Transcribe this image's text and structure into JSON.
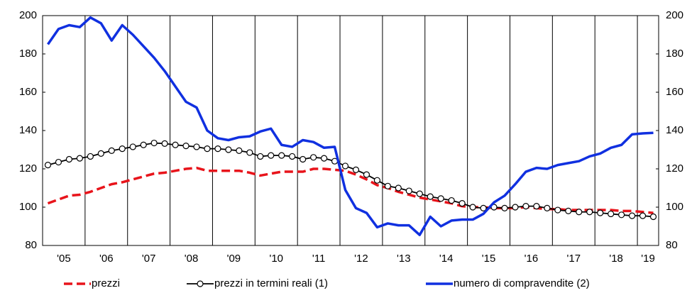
{
  "chart_data": {
    "type": "line",
    "x": [
      2005.125,
      2005.375,
      2005.625,
      2005.875,
      2006.125,
      2006.375,
      2006.625,
      2006.875,
      2007.125,
      2007.375,
      2007.625,
      2007.875,
      2008.125,
      2008.375,
      2008.625,
      2008.875,
      2009.125,
      2009.375,
      2009.625,
      2009.875,
      2010.125,
      2010.375,
      2010.625,
      2010.875,
      2011.125,
      2011.375,
      2011.625,
      2011.875,
      2012.125,
      2012.375,
      2012.625,
      2012.875,
      2013.125,
      2013.375,
      2013.625,
      2013.875,
      2014.125,
      2014.375,
      2014.625,
      2014.875,
      2015.125,
      2015.375,
      2015.625,
      2015.875,
      2016.125,
      2016.375,
      2016.625,
      2016.875,
      2017.125,
      2017.375,
      2017.625,
      2017.875,
      2018.125,
      2018.375,
      2018.625,
      2018.875,
      2019.125,
      2019.375
    ],
    "xlim": [
      2005,
      2019.5
    ],
    "xticks": [
      {
        "value": 2005.5,
        "label": "'05"
      },
      {
        "value": 2006.5,
        "label": "'06"
      },
      {
        "value": 2007.5,
        "label": "'07"
      },
      {
        "value": 2008.5,
        "label": "'08"
      },
      {
        "value": 2009.5,
        "label": "'09"
      },
      {
        "value": 2010.5,
        "label": "'10"
      },
      {
        "value": 2011.5,
        "label": "'11"
      },
      {
        "value": 2012.5,
        "label": "'12"
      },
      {
        "value": 2013.5,
        "label": "'13"
      },
      {
        "value": 2014.5,
        "label": "'14"
      },
      {
        "value": 2015.5,
        "label": "'15"
      },
      {
        "value": 2016.5,
        "label": "'16"
      },
      {
        "value": 2017.5,
        "label": "'17"
      },
      {
        "value": 2018.5,
        "label": "'18"
      },
      {
        "value": 2019.25,
        "label": "'19"
      }
    ],
    "xgrid": [
      2006,
      2007,
      2008,
      2009,
      2010,
      2011,
      2012,
      2013,
      2014,
      2015,
      2016,
      2017,
      2018,
      2019
    ],
    "ylim": [
      80,
      200
    ],
    "yticks": [
      80,
      100,
      120,
      140,
      160,
      180,
      200
    ],
    "y2lim": [
      80,
      200
    ],
    "y2ticks": [
      80,
      100,
      120,
      140,
      160,
      180,
      200
    ],
    "series": [
      {
        "name": "prezzi",
        "color": "#e8141b",
        "dash": true,
        "marker": false,
        "values": [
          102,
          104,
          106,
          106.5,
          108,
          110,
          112,
          113,
          114.5,
          116,
          117.5,
          118,
          119,
          120,
          120.5,
          119,
          119,
          119,
          119,
          118,
          116.5,
          117.5,
          118.5,
          118.5,
          118.5,
          120,
          120,
          119.5,
          119,
          117,
          114.5,
          111.5,
          110,
          108,
          106.5,
          105,
          104,
          103,
          102,
          100.5,
          100,
          100,
          99.5,
          99.5,
          99.5,
          100,
          99.5,
          99,
          99,
          98.5,
          98.5,
          98.5,
          98.5,
          98.5,
          98,
          98,
          97.5,
          97
        ]
      },
      {
        "name": "prezzi in termini reali (1)",
        "color": "#000000",
        "dash": false,
        "marker": true,
        "values": [
          122,
          123.5,
          125,
          125.5,
          126.5,
          128,
          129.5,
          130.5,
          131.5,
          132.5,
          133.5,
          133.2,
          132.5,
          132,
          131.5,
          130.5,
          130.5,
          130,
          129.5,
          128.5,
          126.5,
          127,
          127,
          126.5,
          125,
          126,
          125.5,
          124,
          121.5,
          119.5,
          117,
          114,
          111,
          110,
          108.5,
          107,
          105.5,
          104.5,
          103.5,
          102,
          100,
          99.5,
          100,
          99.5,
          100,
          100.5,
          100.5,
          99.5,
          98.5,
          98,
          97.5,
          97.5,
          97,
          96.5,
          96,
          95.5,
          95.5,
          95
        ]
      },
      {
        "name": "numero di compravendite (2)",
        "color": "#1030e0",
        "dash": false,
        "marker": false,
        "axis": "y2",
        "values": [
          185,
          193,
          195,
          194,
          199,
          196,
          187,
          195,
          190,
          184,
          178,
          171,
          163,
          155,
          152,
          140,
          136,
          135,
          136.5,
          137,
          139.5,
          141,
          132.5,
          131.5,
          135,
          134,
          131,
          131.5,
          109,
          99.5,
          97,
          89.5,
          91.5,
          90.5,
          90.5,
          85.5,
          95,
          90,
          93,
          93.5,
          93.5,
          96.5,
          102.5,
          106,
          112,
          118.5,
          120.5,
          120,
          122,
          123,
          124,
          126.5,
          128,
          131,
          132.5,
          138,
          138.5,
          138.8
        ]
      }
    ]
  }
}
